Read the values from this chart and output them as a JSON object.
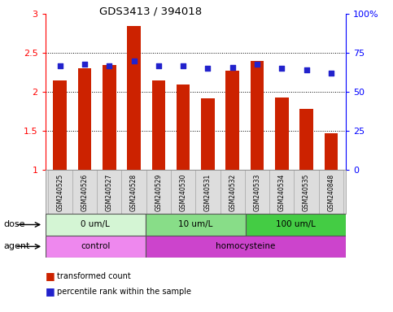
{
  "title": "GDS3413 / 394018",
  "samples": [
    "GSM240525",
    "GSM240526",
    "GSM240527",
    "GSM240528",
    "GSM240529",
    "GSM240530",
    "GSM240531",
    "GSM240532",
    "GSM240533",
    "GSM240534",
    "GSM240535",
    "GSM240848"
  ],
  "red_values": [
    2.15,
    2.3,
    2.35,
    2.85,
    2.15,
    2.1,
    1.92,
    2.27,
    2.4,
    1.93,
    1.78,
    1.47
  ],
  "blue_percentile": [
    67,
    68,
    67,
    70,
    67,
    67,
    65,
    66,
    68,
    65,
    64,
    62
  ],
  "ylim_left": [
    1.0,
    3.0
  ],
  "ylim_right": [
    0,
    100
  ],
  "yticks_left": [
    1.0,
    1.5,
    2.0,
    2.5,
    3.0
  ],
  "ytick_labels_left": [
    "1",
    "1.5",
    "2",
    "2.5",
    "3"
  ],
  "yticks_right": [
    0,
    25,
    50,
    75,
    100
  ],
  "ytick_labels_right": [
    "0",
    "25",
    "50",
    "75",
    "100%"
  ],
  "dose_groups": [
    {
      "label": "0 um/L",
      "start": 0,
      "end": 4,
      "color": "#d4f5d4"
    },
    {
      "label": "10 um/L",
      "start": 4,
      "end": 8,
      "color": "#88dd88"
    },
    {
      "label": "100 um/L",
      "start": 8,
      "end": 12,
      "color": "#44cc44"
    }
  ],
  "agent_groups": [
    {
      "label": "control",
      "start": 0,
      "end": 4,
      "color": "#ee88ee"
    },
    {
      "label": "homocysteine",
      "start": 4,
      "end": 12,
      "color": "#cc44cc"
    }
  ],
  "red_color": "#cc2200",
  "blue_color": "#2222cc",
  "bar_width": 0.55,
  "background_color": "#ffffff",
  "legend_red": "transformed count",
  "legend_blue": "percentile rank within the sample",
  "dose_label": "dose",
  "agent_label": "agent"
}
